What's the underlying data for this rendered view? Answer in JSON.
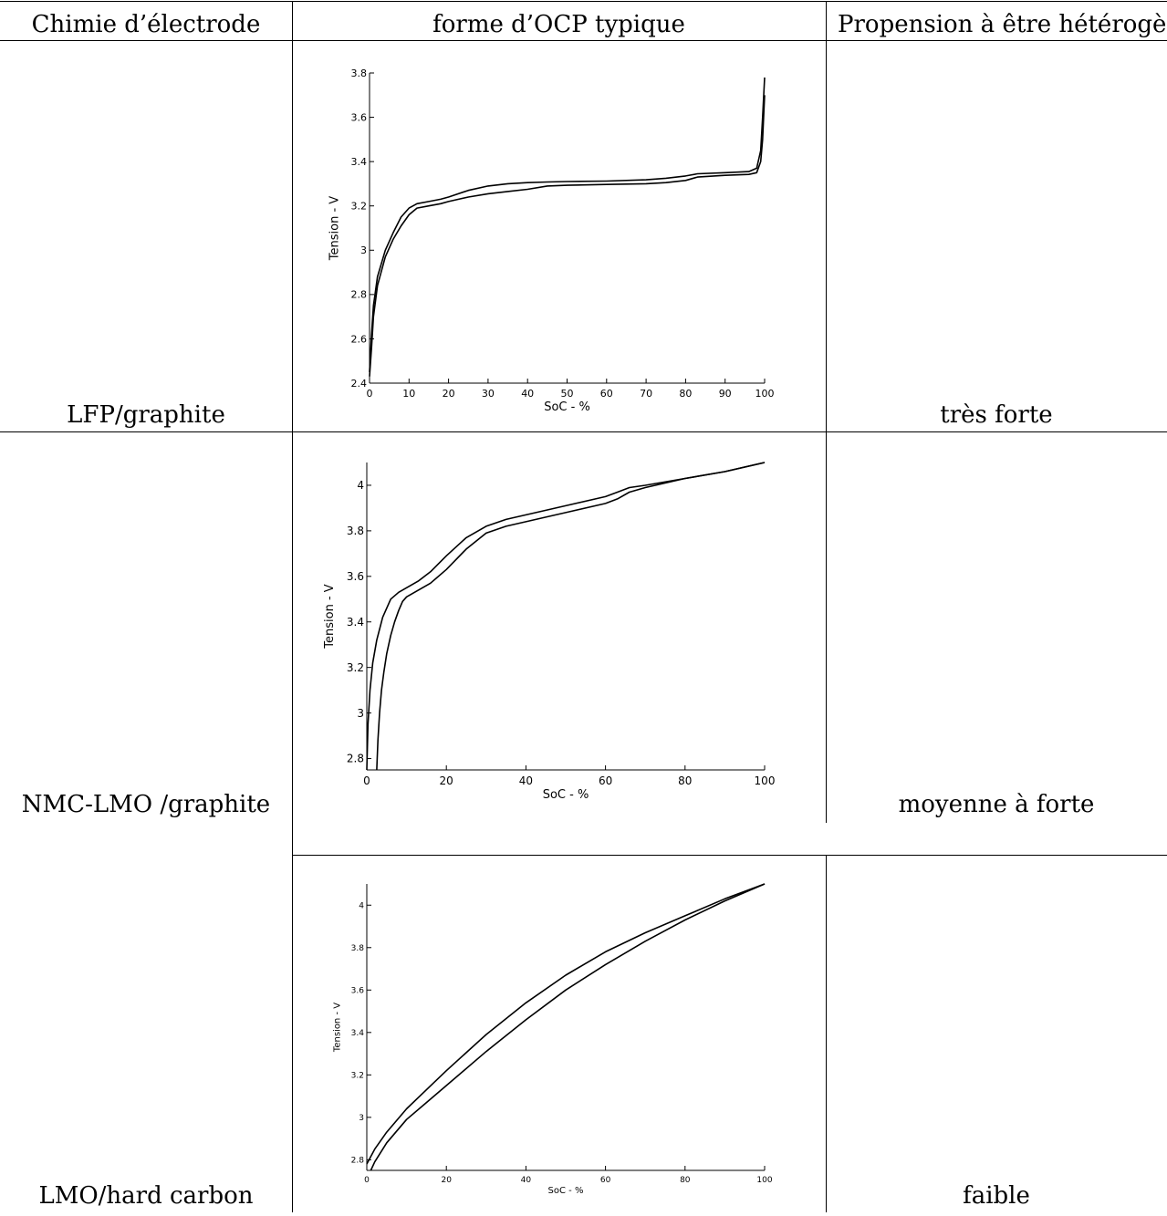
{
  "table": {
    "headers": [
      "Chimie d’électrode",
      "forme d’OCP typique",
      "Propension à être hétérogèn"
    ],
    "rows": [
      {
        "chemistry": "LFP/graphite",
        "propensity": "très forte"
      },
      {
        "chemistry": "NMC-LMO /graphite",
        "propensity": "moyenne à forte"
      },
      {
        "chemistry": "LMO/hard carbon",
        "propensity": "faible"
      }
    ]
  },
  "chart_data": [
    {
      "type": "line",
      "xlabel": "SoC - %",
      "ylabel": "Tension - V",
      "xlim": [
        0,
        100
      ],
      "ylim": [
        2.4,
        3.8
      ],
      "xticks": [
        0,
        10,
        20,
        30,
        40,
        50,
        60,
        70,
        80,
        90,
        100
      ],
      "yticks": [
        2.4,
        2.6,
        2.8,
        3,
        3.2,
        3.4,
        3.6,
        3.8
      ],
      "series": [
        {
          "x": [
            0,
            0.5,
            1,
            2,
            4,
            6,
            8,
            10,
            12,
            15,
            18,
            20,
            25,
            30,
            35,
            40,
            45,
            50,
            60,
            70,
            75,
            80,
            83,
            90,
            96,
            98,
            99,
            99.5,
            100
          ],
          "y": [
            2.45,
            2.62,
            2.75,
            2.88,
            3.0,
            3.08,
            3.15,
            3.19,
            3.21,
            3.22,
            3.23,
            3.24,
            3.27,
            3.29,
            3.3,
            3.305,
            3.308,
            3.31,
            3.312,
            3.318,
            3.325,
            3.335,
            3.345,
            3.35,
            3.355,
            3.37,
            3.45,
            3.6,
            3.78
          ]
        },
        {
          "x": [
            0,
            0.5,
            1,
            2,
            4,
            6,
            8,
            10,
            12,
            15,
            18,
            20,
            25,
            30,
            35,
            40,
            45,
            50,
            60,
            70,
            75,
            80,
            83,
            90,
            96,
            98,
            99,
            99.5,
            100
          ],
          "y": [
            2.43,
            2.56,
            2.7,
            2.84,
            2.97,
            3.05,
            3.11,
            3.16,
            3.19,
            3.2,
            3.21,
            3.22,
            3.24,
            3.255,
            3.265,
            3.275,
            3.29,
            3.293,
            3.297,
            3.3,
            3.305,
            3.315,
            3.33,
            3.338,
            3.342,
            3.35,
            3.4,
            3.5,
            3.7
          ]
        }
      ]
    },
    {
      "type": "line",
      "xlabel": "SoC - %",
      "ylabel": "Tension - V",
      "xlim": [
        0,
        100
      ],
      "ylim": [
        2.75,
        4.1
      ],
      "xticks": [
        0,
        20,
        40,
        60,
        80,
        100
      ],
      "yticks": [
        2.8,
        3,
        3.2,
        3.4,
        3.6,
        3.8,
        4
      ],
      "series": [
        {
          "x": [
            0,
            0.3,
            0.8,
            1.5,
            2.5,
            4,
            6,
            8,
            10,
            13,
            16,
            20,
            25,
            30,
            35,
            40,
            50,
            60,
            63,
            66,
            70,
            80,
            90,
            100
          ],
          "y": [
            2.75,
            2.95,
            3.1,
            3.22,
            3.32,
            3.42,
            3.5,
            3.53,
            3.55,
            3.58,
            3.62,
            3.69,
            3.77,
            3.82,
            3.85,
            3.87,
            3.91,
            3.95,
            3.97,
            3.99,
            4.0,
            4.03,
            4.06,
            4.1
          ]
        },
        {
          "x": [
            2.5,
            2.8,
            3.2,
            3.7,
            4.3,
            5,
            6,
            7,
            8,
            9,
            10,
            13,
            16,
            20,
            25,
            30,
            35,
            40,
            50,
            60,
            63,
            66,
            70,
            80,
            90,
            100
          ],
          "y": [
            2.75,
            2.88,
            3.0,
            3.1,
            3.18,
            3.26,
            3.34,
            3.4,
            3.45,
            3.49,
            3.51,
            3.54,
            3.57,
            3.63,
            3.72,
            3.79,
            3.82,
            3.84,
            3.88,
            3.92,
            3.94,
            3.97,
            3.99,
            4.03,
            4.06,
            4.1
          ]
        }
      ]
    },
    {
      "type": "line",
      "xlabel": "SoC - %",
      "ylabel": "Tension - V",
      "xlim": [
        0,
        100
      ],
      "ylim": [
        2.75,
        4.1
      ],
      "xticks": [
        0,
        20,
        40,
        60,
        80,
        100
      ],
      "yticks": [
        2.8,
        3,
        3.2,
        3.4,
        3.6,
        3.8,
        4
      ],
      "series": [
        {
          "x": [
            0,
            2,
            5,
            10,
            15,
            20,
            30,
            40,
            50,
            60,
            70,
            80,
            90,
            100
          ],
          "y": [
            2.78,
            2.85,
            2.93,
            3.04,
            3.13,
            3.22,
            3.39,
            3.54,
            3.67,
            3.78,
            3.87,
            3.95,
            4.03,
            4.1
          ]
        },
        {
          "x": [
            1,
            2,
            5,
            10,
            15,
            20,
            30,
            40,
            50,
            60,
            70,
            80,
            90,
            100
          ],
          "y": [
            2.75,
            2.79,
            2.88,
            2.99,
            3.07,
            3.15,
            3.31,
            3.46,
            3.6,
            3.72,
            3.83,
            3.93,
            4.02,
            4.1
          ]
        }
      ]
    }
  ]
}
